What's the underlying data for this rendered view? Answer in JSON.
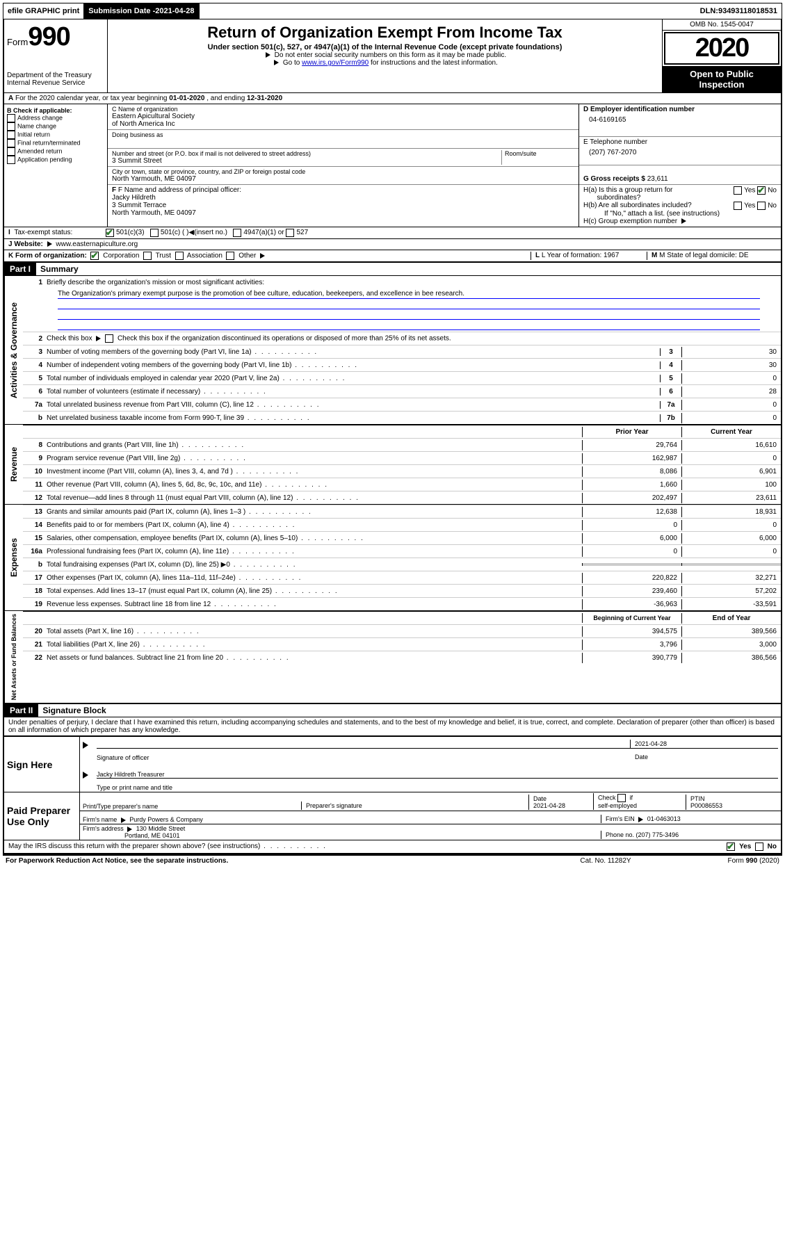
{
  "topbar": {
    "efile": "efile GRAPHIC print",
    "submission_label": "Submission Date - ",
    "submission_date": "2021-04-28",
    "dln_label": "DLN: ",
    "dln": "93493118018531"
  },
  "header": {
    "form_word": "Form",
    "form_num": "990",
    "dept1": "Department of the Treasury",
    "dept2": "Internal Revenue Service",
    "title": "Return of Organization Exempt From Income Tax",
    "subtitle": "Under section 501(c), 527, or 4947(a)(1) of the Internal Revenue Code (except private foundations)",
    "note1": "Do not enter social security numbers on this form as it may be made public.",
    "note2_a": "Go to ",
    "note2_link": "www.irs.gov/Form990",
    "note2_b": " for instructions and the latest information.",
    "omb": "OMB No. 1545-0047",
    "year": "2020",
    "open1": "Open to Public",
    "open2": "Inspection"
  },
  "row_a": {
    "text_a": "For the 2020 calendar year, or tax year beginning ",
    "begin": "01-01-2020",
    "text_b": " , and ending ",
    "end": "12-31-2020"
  },
  "col_b": {
    "hdr": "B Check if applicable:",
    "items": [
      "Address change",
      "Name change",
      "Initial return",
      "Final return/terminated",
      "Amended return",
      "Application pending"
    ]
  },
  "col_c": {
    "name_lbl": "C Name of organization",
    "name1": "Eastern Apicultural Society",
    "name2": "of North America Inc",
    "dba_lbl": "Doing business as",
    "street_lbl": "Number and street (or P.O. box if mail is not delivered to street address)",
    "room_lbl": "Room/suite",
    "street": "3 Summit Street",
    "city_lbl": "City or town, state or province, country, and ZIP or foreign postal code",
    "city": "North Yarmouth, ME  04097",
    "officer_lbl": "F Name and address of principal officer:",
    "officer_name": "Jacky Hildreth",
    "officer_street": "3 Summit Terrace",
    "officer_city": "North Yarmouth, ME  04097"
  },
  "col_d": {
    "ein_lbl": "D Employer identification number",
    "ein": "04-6169165",
    "tel_lbl": "E Telephone number",
    "tel": "(207) 767-2070",
    "gross_lbl": "G Gross receipts $ ",
    "gross": "23,611",
    "ha": "H(a)  Is this a group return for",
    "ha2": "subordinates?",
    "hb": "H(b)  Are all subordinates included?",
    "hb_note": "If \"No,\" attach a list. (see instructions)",
    "hc": "H(c)  Group exemption number",
    "yes": "Yes",
    "no": "No"
  },
  "row_i": {
    "lbl": "Tax-exempt status:",
    "opt1": "501(c)(3)",
    "opt2": "501(c) (   )",
    "ins": "(insert no.)",
    "opt3": "4947(a)(1) or",
    "opt4": "527"
  },
  "row_j": {
    "lbl": "J   Website:",
    "val": "www.easternapiculture.org"
  },
  "row_k": {
    "lbl": "K Form of organization:",
    "corp": "Corporation",
    "trust": "Trust",
    "assoc": "Association",
    "other": "Other",
    "l_lbl": "L Year of formation: ",
    "l_val": "1967",
    "m_lbl": "M State of legal domicile: ",
    "m_val": "DE"
  },
  "part1": {
    "hdr": "Part I",
    "title": "Summary",
    "q1": "Briefly describe the organization's mission or most significant activities:",
    "mission": "The Organization's primary exempt purpose is the promotion of bee culture, education, beekeepers, and excellence in bee research.",
    "q2": "Check this box          if the organization discontinued its operations or disposed of more than 25% of its net assets.",
    "lines_gov": [
      {
        "n": "3",
        "t": "Number of voting members of the governing body (Part VI, line 1a)",
        "c": "3",
        "v": "30"
      },
      {
        "n": "4",
        "t": "Number of independent voting members of the governing body (Part VI, line 1b)",
        "c": "4",
        "v": "30"
      },
      {
        "n": "5",
        "t": "Total number of individuals employed in calendar year 2020 (Part V, line 2a)",
        "c": "5",
        "v": "0"
      },
      {
        "n": "6",
        "t": "Total number of volunteers (estimate if necessary)",
        "c": "6",
        "v": "28"
      },
      {
        "n": "7a",
        "t": "Total unrelated business revenue from Part VIII, column (C), line 12",
        "c": "7a",
        "v": "0"
      },
      {
        "n": "b",
        "t": "Net unrelated business taxable income from Form 990-T, line 39",
        "c": "7b",
        "v": "0"
      }
    ],
    "col_prior": "Prior Year",
    "col_curr": "Current Year",
    "rev": [
      {
        "n": "8",
        "t": "Contributions and grants (Part VIII, line 1h)",
        "p": "29,764",
        "c": "16,610"
      },
      {
        "n": "9",
        "t": "Program service revenue (Part VIII, line 2g)",
        "p": "162,987",
        "c": "0"
      },
      {
        "n": "10",
        "t": "Investment income (Part VIII, column (A), lines 3, 4, and 7d )",
        "p": "8,086",
        "c": "6,901"
      },
      {
        "n": "11",
        "t": "Other revenue (Part VIII, column (A), lines 5, 6d, 8c, 9c, 10c, and 11e)",
        "p": "1,660",
        "c": "100"
      },
      {
        "n": "12",
        "t": "Total revenue—add lines 8 through 11 (must equal Part VIII, column (A), line 12)",
        "p": "202,497",
        "c": "23,611"
      }
    ],
    "exp": [
      {
        "n": "13",
        "t": "Grants and similar amounts paid (Part IX, column (A), lines 1–3 )",
        "p": "12,638",
        "c": "18,931"
      },
      {
        "n": "14",
        "t": "Benefits paid to or for members (Part IX, column (A), line 4)",
        "p": "0",
        "c": "0"
      },
      {
        "n": "15",
        "t": "Salaries, other compensation, employee benefits (Part IX, column (A), lines 5–10)",
        "p": "6,000",
        "c": "6,000"
      },
      {
        "n": "16a",
        "t": "Professional fundraising fees (Part IX, column (A), line 11e)",
        "p": "0",
        "c": "0"
      },
      {
        "n": "b",
        "t": "Total fundraising expenses (Part IX, column (D), line 25)  ▶0",
        "p": "",
        "c": "",
        "shade": true
      },
      {
        "n": "17",
        "t": "Other expenses (Part IX, column (A), lines 11a–11d, 11f–24e)",
        "p": "220,822",
        "c": "32,271"
      },
      {
        "n": "18",
        "t": "Total expenses. Add lines 13–17 (must equal Part IX, column (A), line 25)",
        "p": "239,460",
        "c": "57,202"
      },
      {
        "n": "19",
        "t": "Revenue less expenses. Subtract line 18 from line 12",
        "p": "-36,963",
        "c": "-33,591"
      }
    ],
    "col_beg": "Beginning of Current Year",
    "col_end": "End of Year",
    "net": [
      {
        "n": "20",
        "t": "Total assets (Part X, line 16)",
        "p": "394,575",
        "c": "389,566"
      },
      {
        "n": "21",
        "t": "Total liabilities (Part X, line 26)",
        "p": "3,796",
        "c": "3,000"
      },
      {
        "n": "22",
        "t": "Net assets or fund balances. Subtract line 21 from line 20",
        "p": "390,779",
        "c": "386,566"
      }
    ],
    "vert_gov": "Activities & Governance",
    "vert_rev": "Revenue",
    "vert_exp": "Expenses",
    "vert_net": "Net Assets or Fund Balances"
  },
  "part2": {
    "hdr": "Part II",
    "title": "Signature Block",
    "decl": "Under penalties of perjury, I declare that I have examined this return, including accompanying schedules and statements, and to the best of my knowledge and belief, it is true, correct, and complete. Declaration of preparer (other than officer) is based on all information of which preparer has any knowledge.",
    "sign_here": "Sign Here",
    "sig_officer": "Signature of officer",
    "date": "Date",
    "sig_date": "2021-04-28",
    "officer_typed": "Jacky Hildreth  Treasurer",
    "type_name": "Type or print name and title",
    "paid": "Paid Preparer Use Only",
    "prep_name_lbl": "Print/Type preparer's name",
    "prep_sig_lbl": "Preparer's signature",
    "prep_date_lbl": "Date",
    "prep_date": "2021-04-28",
    "self_emp": "Check        if self-employed",
    "ptin_lbl": "PTIN",
    "ptin": "P00086553",
    "firm_name_lbl": "Firm's name   ",
    "firm_name": "Purdy Powers & Company",
    "firm_ein_lbl": "Firm's EIN ",
    "firm_ein": "01-0463013",
    "firm_addr_lbl": "Firm's address ",
    "firm_addr1": "130 Middle Street",
    "firm_addr2": "Portland, ME  04101",
    "phone_lbl": "Phone no. ",
    "phone": "(207) 775-3496",
    "discuss": "May the IRS discuss this return with the preparer shown above? (see instructions)"
  },
  "footer": {
    "left": "For Paperwork Reduction Act Notice, see the separate instructions.",
    "mid": "Cat. No. 11282Y",
    "right": "Form 990 (2020)"
  }
}
